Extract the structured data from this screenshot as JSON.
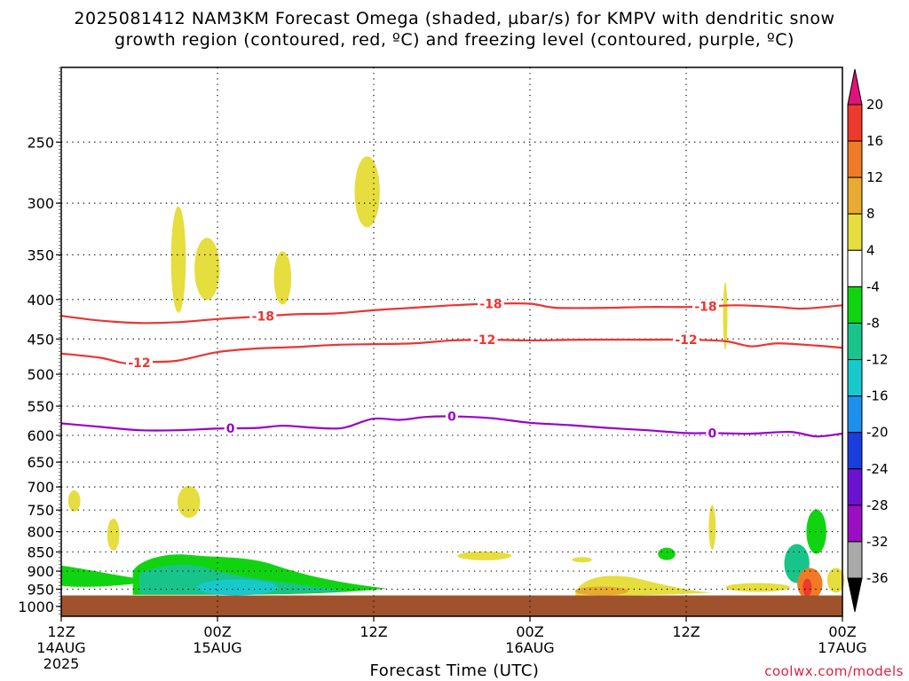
{
  "title": {
    "line1": "2025081412 NAM3KM Forecast Omega (shaded, µbar/s) for KMPV with dendritic snow",
    "line2": "growth region (contoured, red, ºC) and freezing level (contoured, purple, ºC)"
  },
  "credit": "coolwx.com/models",
  "chart_data": {
    "type": "time-height cross section",
    "title": "2025081412 NAM3KM Forecast Omega (shaded, µbar/s) for KMPV with dendritic snow growth region (contoured, red, ºC) and freezing level (contoured, purple, ºC)",
    "xlabel": "Forecast Time (UTC)",
    "ylabel": "",
    "y_axis": {
      "scale": "log-pressure",
      "units": "hPa",
      "ylim": [
        1030,
        200
      ],
      "ticks": [
        250,
        300,
        350,
        400,
        450,
        500,
        550,
        600,
        650,
        700,
        750,
        800,
        850,
        900,
        950,
        1000
      ]
    },
    "x_axis": {
      "range_hours": [
        0,
        60
      ],
      "ticks": [
        {
          "hour": 0,
          "label": "12Z",
          "sub": "14AUG",
          "sub2": "2025"
        },
        {
          "hour": 12,
          "label": "00Z",
          "sub": "15AUG",
          "sub2": ""
        },
        {
          "hour": 24,
          "label": "12Z",
          "sub": "",
          "sub2": ""
        },
        {
          "hour": 36,
          "label": "00Z",
          "sub": "16AUG",
          "sub2": ""
        },
        {
          "hour": 48,
          "label": "12Z",
          "sub": "",
          "sub2": ""
        },
        {
          "hour": 60,
          "label": "00Z",
          "sub": "17AUG",
          "sub2": ""
        }
      ]
    },
    "grid": true,
    "contours": [
      {
        "name": "-18",
        "color": "#ee3333",
        "kind": "dendritic growth",
        "labels_at_hours": [
          15.5,
          33,
          49.5
        ],
        "points": [
          [
            0,
            420
          ],
          [
            3,
            426
          ],
          [
            6,
            429
          ],
          [
            9,
            428
          ],
          [
            12,
            424
          ],
          [
            15,
            421
          ],
          [
            18,
            418
          ],
          [
            21,
            417
          ],
          [
            24,
            413
          ],
          [
            27,
            410
          ],
          [
            30,
            407
          ],
          [
            33,
            405
          ],
          [
            36,
            405
          ],
          [
            38,
            410
          ],
          [
            42,
            410
          ],
          [
            45,
            409
          ],
          [
            48,
            409
          ],
          [
            50,
            408
          ],
          [
            52,
            407
          ],
          [
            55,
            409
          ],
          [
            57,
            411
          ],
          [
            60,
            407
          ]
        ]
      },
      {
        "name": "-12",
        "color": "#ee3333",
        "kind": "dendritic growth",
        "labels_at_hours": [
          6,
          32.5,
          48
        ],
        "points": [
          [
            0,
            470
          ],
          [
            3,
            476
          ],
          [
            5,
            484
          ],
          [
            7,
            482
          ],
          [
            9,
            480
          ],
          [
            12,
            468
          ],
          [
            15,
            463
          ],
          [
            18,
            461
          ],
          [
            21,
            458
          ],
          [
            24,
            457
          ],
          [
            27,
            456
          ],
          [
            30,
            452
          ],
          [
            33,
            451
          ],
          [
            36,
            452
          ],
          [
            40,
            451
          ],
          [
            45,
            451
          ],
          [
            48,
            451
          ],
          [
            51,
            453
          ],
          [
            53,
            460
          ],
          [
            55,
            456
          ],
          [
            58,
            459
          ],
          [
            60,
            462
          ]
        ]
      },
      {
        "name": "0",
        "color": "#9900cc",
        "kind": "freezing level",
        "labels_at_hours": [
          13,
          30,
          50
        ],
        "points": [
          [
            0,
            579
          ],
          [
            3,
            585
          ],
          [
            6,
            591
          ],
          [
            9,
            591
          ],
          [
            12,
            588
          ],
          [
            15,
            587
          ],
          [
            17,
            583
          ],
          [
            19,
            586
          ],
          [
            21,
            588
          ],
          [
            22,
            585
          ],
          [
            24,
            571
          ],
          [
            26,
            573
          ],
          [
            28,
            568
          ],
          [
            30,
            567
          ],
          [
            33,
            570
          ],
          [
            36,
            578
          ],
          [
            39,
            582
          ],
          [
            42,
            587
          ],
          [
            45,
            591
          ],
          [
            48,
            596
          ],
          [
            50,
            596
          ],
          [
            53,
            597
          ],
          [
            56,
            594
          ],
          [
            58,
            602
          ],
          [
            60,
            597
          ]
        ]
      }
    ],
    "shaded_regions": [
      {
        "type": "ellipse",
        "h": 1.0,
        "p": 730,
        "value": 5
      },
      {
        "type": "ellipse",
        "h": 4.0,
        "p": 807,
        "value": 5
      },
      {
        "type": "ellipse",
        "h": 9.0,
        "p": 355,
        "value": 5
      },
      {
        "type": "ellipse",
        "h": 11.2,
        "p": 365,
        "value": 6
      },
      {
        "type": "ellipse",
        "h": 9.8,
        "p": 732,
        "value": 6
      },
      {
        "type": "ellipse",
        "h": 17.0,
        "p": 375,
        "value": 5
      },
      {
        "type": "ellipse",
        "h": 23.5,
        "p": 290,
        "value": 6
      },
      {
        "type": "ellipse",
        "h": 32.5,
        "p": 860,
        "value": 5
      },
      {
        "type": "ellipse",
        "h": 40.0,
        "p": 870,
        "value": 5
      },
      {
        "type": "ellipse",
        "h": 51.0,
        "p": 420,
        "value": 5
      },
      {
        "type": "ellipse",
        "h": 50.0,
        "p": 790,
        "value": 5
      },
      {
        "type": "ellipse",
        "h": 46.5,
        "p": 855,
        "value": -6
      },
      {
        "type": "ellipse",
        "h": 53.5,
        "p": 945,
        "value": 5
      },
      {
        "type": "region",
        "name": "lower-left ascent",
        "value": -10
      },
      {
        "type": "region",
        "name": "late-day descent",
        "value": 8
      },
      {
        "type": "ellipse",
        "h": 56.5,
        "p": 880,
        "value": -10
      },
      {
        "type": "ellipse",
        "h": 58.0,
        "p": 800,
        "value": -8
      },
      {
        "type": "ellipse",
        "h": 57.5,
        "p": 935,
        "value": 14
      },
      {
        "type": "ellipse",
        "h": 59.5,
        "p": 925,
        "value": 5
      }
    ],
    "colorbar": {
      "label_values": [
        20,
        16,
        12,
        8,
        4,
        -4,
        -8,
        -12,
        -16,
        -20,
        -24,
        -28,
        -32,
        -36
      ],
      "bins": [
        {
          "range": ">20",
          "color": "#e0137a"
        },
        {
          "range": "16 to 20",
          "color": "#ee3a2c"
        },
        {
          "range": "12 to 16",
          "color": "#f07a25"
        },
        {
          "range": "8 to 12",
          "color": "#e8aa30"
        },
        {
          "range": "4 to 8",
          "color": "#e6dd3e"
        },
        {
          "range": "-4 to 4",
          "color": "#ffffff"
        },
        {
          "range": "-8 to -4",
          "color": "#11d411"
        },
        {
          "range": "-12 to -8",
          "color": "#19c48a"
        },
        {
          "range": "-16 to -12",
          "color": "#18c9cc"
        },
        {
          "range": "-20 to -16",
          "color": "#1d90ee"
        },
        {
          "range": "-24 to -20",
          "color": "#1a3ede"
        },
        {
          "range": "-28 to -24",
          "color": "#6b13d0"
        },
        {
          "range": "-32 to -28",
          "color": "#9a0fc4"
        },
        {
          "range": "-36 to -32",
          "color": "#a9a9a9"
        },
        {
          "range": "<-36",
          "color": "#000000"
        }
      ]
    },
    "terrain": {
      "surface_pressure_hPa": 968,
      "color": "#a0522d"
    }
  }
}
